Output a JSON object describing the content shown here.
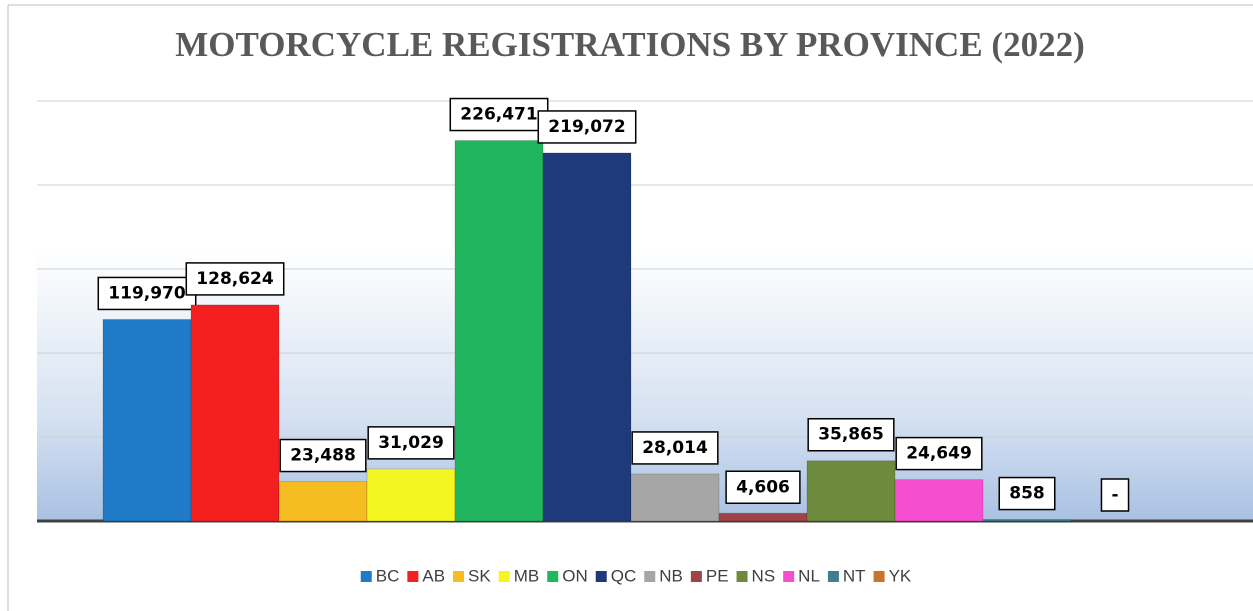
{
  "chart_data": {
    "type": "bar",
    "title": "MOTORCYCLE REGISTRATIONS BY PROVINCE (2022)",
    "ylim": [
      0,
      250000
    ],
    "yticks": [
      0,
      50000,
      100000,
      150000,
      200000,
      250000
    ],
    "grid": true,
    "series": [
      {
        "name": "BC",
        "color": "#1f7bc8",
        "values": [
          119970
        ],
        "value_labels": [
          "119,970"
        ]
      },
      {
        "name": "AB",
        "color": "#f42020",
        "values": [
          128624
        ],
        "value_labels": [
          "128,624"
        ]
      },
      {
        "name": "SK",
        "color": "#f5bd22",
        "values": [
          23488
        ],
        "value_labels": [
          "23,488"
        ]
      },
      {
        "name": "MB",
        "color": "#f5f522",
        "values": [
          31029
        ],
        "value_labels": [
          "31,029"
        ]
      },
      {
        "name": "ON",
        "color": "#22b55f",
        "values": [
          226471
        ],
        "value_labels": [
          "226,471"
        ]
      },
      {
        "name": "QC",
        "color": "#1f3a7a",
        "values": [
          219072
        ],
        "value_labels": [
          "219,072"
        ]
      },
      {
        "name": "NB",
        "color": "#a6a6a6",
        "values": [
          28014
        ],
        "value_labels": [
          "28,014"
        ]
      },
      {
        "name": "PE",
        "color": "#9e4444",
        "values": [
          4606
        ],
        "value_labels": [
          "4,606"
        ]
      },
      {
        "name": "NS",
        "color": "#6e8b3d",
        "values": [
          35865
        ],
        "value_labels": [
          "35,865"
        ]
      },
      {
        "name": "NL",
        "color": "#f54fd0",
        "values": [
          24649
        ],
        "value_labels": [
          "24,649"
        ]
      },
      {
        "name": "NT",
        "color": "#3f7f8f",
        "values": [
          858
        ],
        "value_labels": [
          "858"
        ]
      },
      {
        "name": "YK",
        "color": "#c8742a",
        "values": [
          0
        ],
        "value_labels": [
          "-"
        ]
      }
    ]
  }
}
